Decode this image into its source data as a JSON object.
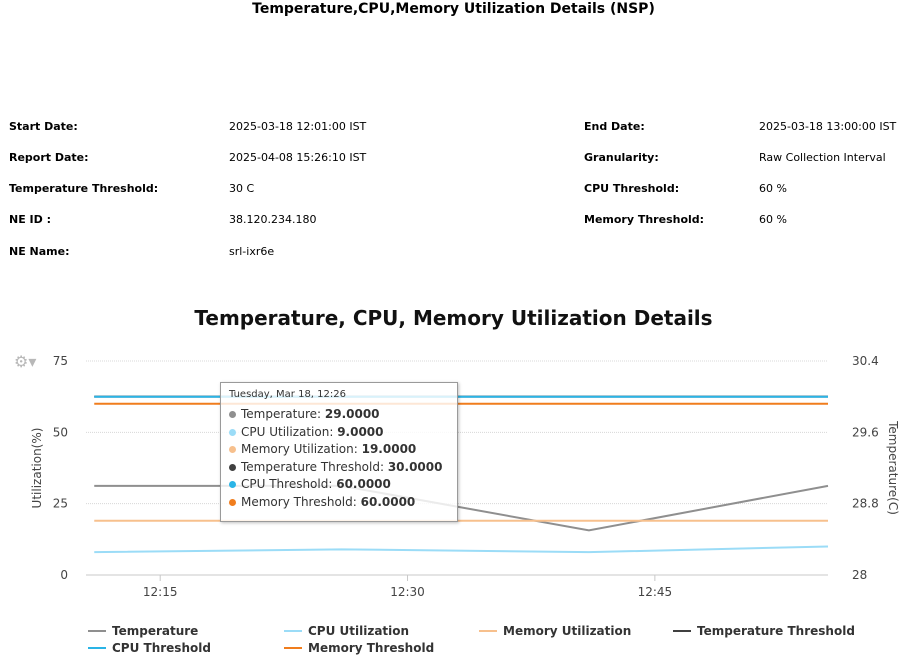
{
  "report": {
    "title": "Temperature,CPU,Memory Utilization Details (NSP)"
  },
  "info": {
    "left": [
      {
        "label": "Start Date:",
        "value": "2025-03-18 12:01:00 IST"
      },
      {
        "label": "Report Date:",
        "value": "2025-04-08 15:26:10 IST"
      },
      {
        "label": "Temperature Threshold:",
        "value": "30 C"
      },
      {
        "label": "NE ID :",
        "value": "38.120.234.180"
      },
      {
        "label": "NE Name:",
        "value": "srl-ixr6e"
      }
    ],
    "right": [
      {
        "label": "End Date:",
        "value": "2025-03-18 13:00:00 IST"
      },
      {
        "label": "Granularity:",
        "value": "Raw Collection Interval"
      },
      {
        "label": "CPU Threshold:",
        "value": "60 %"
      },
      {
        "label": "Memory Threshold:",
        "value": "60 %"
      }
    ]
  },
  "chart_data": {
    "type": "line",
    "title": "Temperature, CPU, Memory Utilization Details",
    "ylabel": "Utilization(%)",
    "y2label": "Temperature(C)",
    "ylim": [
      0,
      75
    ],
    "y2lim": [
      28,
      30.4
    ],
    "yticks": [
      "0",
      "25",
      "50",
      "75"
    ],
    "y2ticks": [
      "28",
      "28.8",
      "29.6",
      "30.4"
    ],
    "xticks": [
      "12:15",
      "12:30",
      "12:45"
    ],
    "xlim_minutes": [
      10.5,
      55.5
    ],
    "xtick_minutes": [
      15,
      30,
      45
    ],
    "grid": true,
    "series": [
      {
        "name": "Temperature",
        "axis": "right",
        "color": "#8f8f8f",
        "x_minutes": [
          11,
          26,
          41,
          56
        ],
        "values": [
          29.0,
          29.0,
          28.5,
          29.0
        ]
      },
      {
        "name": "CPU Utilization",
        "axis": "left",
        "color": "#9bdcf7",
        "x_minutes": [
          11,
          26,
          41,
          56
        ],
        "values": [
          8,
          9,
          8,
          10
        ]
      },
      {
        "name": "Memory Utilization",
        "axis": "left",
        "color": "#f7c08d",
        "x_minutes": [
          11,
          26,
          41,
          56
        ],
        "values": [
          19,
          19,
          19,
          19
        ]
      },
      {
        "name": "Temperature Threshold",
        "axis": "right",
        "color": "#404040",
        "x_minutes": [
          11,
          26,
          41,
          56
        ],
        "values": [
          30.0,
          30.0,
          30.0,
          30.0
        ]
      },
      {
        "name": "CPU Threshold",
        "axis": "left",
        "color": "#2ab4e6",
        "x_minutes": [
          11,
          26,
          41,
          56
        ],
        "values": [
          60,
          60,
          60,
          60
        ]
      },
      {
        "name": "Memory Threshold",
        "axis": "left",
        "color": "#f07d1d",
        "x_minutes": [
          11,
          26,
          41,
          56
        ],
        "values": [
          60,
          60,
          60,
          60
        ]
      }
    ],
    "tooltip": {
      "date": "Tuesday, Mar 18, 12:26",
      "rows": [
        {
          "label": "Temperature: ",
          "value": "29.0000",
          "color": "#8f8f8f"
        },
        {
          "label": "CPU Utilization: ",
          "value": "9.0000",
          "color": "#9bdcf7"
        },
        {
          "label": "Memory Utilization: ",
          "value": "19.0000",
          "color": "#f7c08d"
        },
        {
          "label": "Temperature Threshold: ",
          "value": "30.0000",
          "color": "#404040"
        },
        {
          "label": "CPU Threshold: ",
          "value": "60.0000",
          "color": "#2ab4e6"
        },
        {
          "label": "Memory Threshold: ",
          "value": "60.0000",
          "color": "#f07d1d"
        }
      ]
    }
  },
  "toolbar": {
    "options_icon": "gear-icon",
    "options_glyph": "⚙▾"
  }
}
